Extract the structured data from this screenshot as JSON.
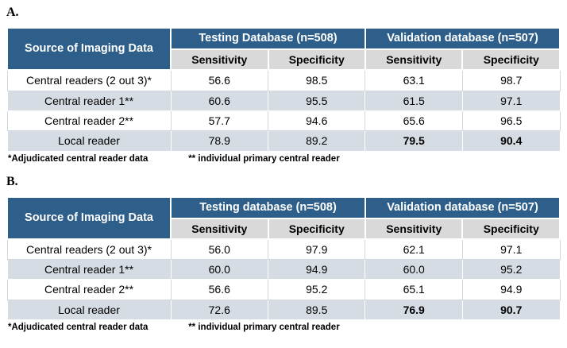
{
  "colors": {
    "header_blue": "#2e5f8a",
    "subheader_gray": "#d9d9d9",
    "band_gray": "#d6dce3"
  },
  "figure": {
    "panels": [
      {
        "label": "A.",
        "table": {
          "corner_header": "Source of Imaging Data",
          "group_headers": [
            "Testing Database (n=508)",
            "Validation database (n=507)"
          ],
          "col_headers": [
            "Sensitivity",
            "Specificity",
            "Sensitivity",
            "Specificity"
          ],
          "rows": [
            {
              "source": "Central readers (2 out 3)*",
              "values": [
                "56.6",
                "98.5",
                "63.1",
                "98.7"
              ]
            },
            {
              "source": "Central reader 1**",
              "values": [
                "60.6",
                "95.5",
                "61.5",
                "97.1"
              ]
            },
            {
              "source": "Central reader 2**",
              "values": [
                "57.7",
                "94.6",
                "65.6",
                "96.5"
              ]
            },
            {
              "source": "Local reader",
              "values": [
                "78.9",
                "89.2",
                "79.5",
                "90.4"
              ]
            }
          ],
          "footnote_left": "*Adjudicated central reader data",
          "footnote_right": "** individual primary central reader"
        }
      },
      {
        "label": "B.",
        "table": {
          "corner_header": "Source of Imaging Data",
          "group_headers": [
            "Testing database (n=508)",
            "Validation database (n=507)"
          ],
          "col_headers": [
            "Sensitivity",
            "Specificity",
            "Sensitivity",
            "Specificity"
          ],
          "rows": [
            {
              "source": "Central readers (2 out 3)*",
              "values": [
                "56.0",
                "97.9",
                "62.1",
                "97.1"
              ]
            },
            {
              "source": "Central reader 1**",
              "values": [
                "60.0",
                "94.9",
                "60.0",
                "95.2"
              ]
            },
            {
              "source": "Central reader 2**",
              "values": [
                "56.6",
                "95.2",
                "65.1",
                "94.9"
              ]
            },
            {
              "source": "Local reader",
              "values": [
                "72.6",
                "89.5",
                "76.9",
                "90.7"
              ]
            }
          ],
          "footnote_left": "*Adjudicated central reader data",
          "footnote_right": "** individual primary central reader"
        }
      }
    ]
  }
}
